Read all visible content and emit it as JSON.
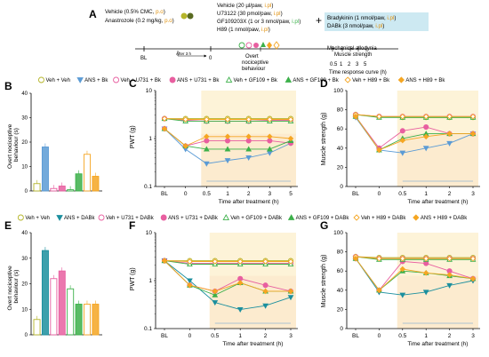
{
  "panelA": {
    "letter": "A",
    "vehicle_line1": "Vehicle (0.5% CMC, ",
    "vehicle_line1_route": "p.o",
    "vehicle_line1_end": ")",
    "anastrozole_line": "Anastrozole (0.2 mg/kg, ",
    "anastrozole_route": "p.o",
    "anastrozole_end": ")",
    "treatments": [
      {
        "name": "Vehicle (20 µl/paw, ",
        "route": "i.pl",
        "end": ")"
      },
      {
        "name": "U73122 (30 pmol/paw, ",
        "route": "i.pl",
        "end": ")"
      },
      {
        "name": "GF109203X (1 or 3 nmol/paw, ",
        "route": "i.pl",
        "end": ")"
      },
      {
        "name": "H89 (1 nmol/paw, ",
        "route": "i.pl",
        "end": ")"
      }
    ],
    "plus": "+",
    "stimuli": [
      {
        "name": "Bradykinin (1 nmol/paw, ",
        "route": "i.pl",
        "end": ")"
      },
      {
        "name": "DABk (3 nmol/paw, ",
        "route": "i.pl",
        "end": ")"
      }
    ],
    "bl": "BL",
    "after3h": "After 3 h",
    "zero": "0",
    "overt_line1": "Overt",
    "overt_line2": "nociceptive",
    "overt_line3": "behaviour",
    "mech_line1": "Mechanical allodynia",
    "mech_line2": "Muscle strength",
    "timepoints": [
      "0.5",
      "1",
      "2",
      "3",
      "5"
    ],
    "time_curve": "Time response curve (h)"
  },
  "legend1": [
    "Veh + Veh",
    "ANS + Bk",
    "Veh + U731 + Bk",
    "ANS + U731 + Bk",
    "Veh + GF109 + Bk",
    "ANS + GF109 + Bk",
    "Veh + H89 + Bk",
    "ANS + H89 + Bk"
  ],
  "legend2": [
    "Veh + Veh",
    "ANS + DABk",
    "Veh + U731 + DABk",
    "ANS + U731 + DABk",
    "Veh + GF109 + DABk",
    "ANS + GF109 + DABk",
    "Veh + H89 + DABk",
    "ANS + H89 + DABk"
  ],
  "colors": {
    "veh": "#b5b52a",
    "ans": "#5b9bd5",
    "ans2": "#1b8f9e",
    "u731": "#e85fa0",
    "gf109": "#3cb04a",
    "h89": "#f5a623",
    "shade": "#fdf3d8",
    "shade2": "#fbe3c8"
  },
  "labels": {
    "B": "B",
    "C": "C",
    "D": "D",
    "E": "E",
    "F": "F",
    "G": "G",
    "overt_y1": "Overt nociceptive",
    "overt_y2": "behaviour (s)",
    "pwt": "PWT (g)",
    "muscle": "Muscle strength (g)",
    "time_x": "Time after treatment (h)",
    "bl": "BL",
    "t0": "0"
  },
  "chart_data": [
    {
      "panel": "B",
      "type": "bar",
      "ylim": [
        0,
        40
      ],
      "yticks": [
        "0",
        "10",
        "20",
        "30",
        "40"
      ],
      "series": [
        {
          "name": "Veh + Veh",
          "values": [
            3
          ]
        },
        {
          "name": "ANS + Bk",
          "values": [
            18
          ]
        },
        {
          "name": "Veh + U731 + Bk",
          "values": [
            1
          ]
        },
        {
          "name": "ANS + U731 + Bk",
          "values": [
            2
          ]
        },
        {
          "name": "Veh + GF109 + Bk",
          "values": [
            0.5
          ]
        },
        {
          "name": "ANS + GF109 + Bk",
          "values": [
            7
          ]
        },
        {
          "name": "Veh + H89 + Bk",
          "values": [
            15
          ]
        },
        {
          "name": "ANS + H89 + Bk",
          "values": [
            6
          ]
        }
      ]
    },
    {
      "panel": "E",
      "type": "bar",
      "ylim": [
        0,
        40
      ],
      "yticks": [
        "0",
        "10",
        "20",
        "30",
        "40"
      ],
      "series": [
        {
          "name": "Veh + Veh",
          "values": [
            6
          ]
        },
        {
          "name": "ANS + DABk",
          "values": [
            33
          ]
        },
        {
          "name": "Veh + U731 + DABk",
          "values": [
            22
          ]
        },
        {
          "name": "ANS + U731 + DABk",
          "values": [
            25
          ]
        },
        {
          "name": "Veh + GF109 + DABk",
          "values": [
            18
          ]
        },
        {
          "name": "ANS + GF109 + DABk",
          "values": [
            12
          ]
        },
        {
          "name": "Veh + H89 + DABk",
          "values": [
            12
          ]
        },
        {
          "name": "ANS + H89 + DABk",
          "values": [
            12
          ]
        }
      ]
    },
    {
      "panel": "C",
      "type": "line",
      "yscale": "log",
      "ylim": [
        0.1,
        10
      ],
      "yticks": [
        "0.1",
        "1",
        "10"
      ],
      "categories": [
        "BL",
        "0",
        "0.5",
        "1",
        "2",
        "3",
        "5"
      ],
      "series": [
        {
          "name": "Veh + Veh",
          "values": [
            2.6,
            2.6,
            2.6,
            2.6,
            2.6,
            2.6,
            2.6
          ]
        },
        {
          "name": "ANS + Bk",
          "values": [
            1.6,
            0.6,
            0.3,
            0.35,
            0.4,
            0.5,
            0.8
          ]
        },
        {
          "name": "Veh + U731 + Bk",
          "values": [
            2.6,
            2.4,
            2.3,
            2.3,
            2.3,
            2.4,
            2.4
          ]
        },
        {
          "name": "ANS + U731 + Bk",
          "values": [
            1.6,
            0.7,
            0.9,
            0.9,
            0.9,
            0.9,
            0.8
          ]
        },
        {
          "name": "Veh + GF109 + Bk",
          "values": [
            2.6,
            2.3,
            2.3,
            2.3,
            2.3,
            2.3,
            2.3
          ]
        },
        {
          "name": "ANS + GF109 + Bk",
          "values": [
            1.6,
            0.7,
            0.6,
            0.6,
            0.6,
            0.6,
            0.9
          ]
        },
        {
          "name": "Veh + H89 + Bk",
          "values": [
            2.6,
            2.5,
            2.5,
            2.5,
            2.5,
            2.5,
            2.5
          ]
        },
        {
          "name": "ANS + H89 + Bk",
          "values": [
            1.6,
            0.7,
            1.1,
            1.1,
            1.1,
            1.1,
            1.0
          ]
        }
      ]
    },
    {
      "panel": "D",
      "type": "line",
      "ylim": [
        0,
        100
      ],
      "yticks": [
        "0",
        "20",
        "40",
        "60",
        "80",
        "100"
      ],
      "categories": [
        "BL",
        "0",
        "0.5",
        "1",
        "2",
        "3"
      ],
      "series": [
        {
          "name": "Veh + Veh",
          "values": [
            75,
            73,
            72,
            72,
            72,
            72
          ]
        },
        {
          "name": "ANS + Bk",
          "values": [
            72,
            38,
            35,
            40,
            45,
            55
          ]
        },
        {
          "name": "Veh + U731 + Bk",
          "values": [
            75,
            73,
            73,
            73,
            73,
            73
          ]
        },
        {
          "name": "ANS + U731 + Bk",
          "values": [
            73,
            40,
            58,
            62,
            55,
            55
          ]
        },
        {
          "name": "Veh + GF109 + Bk",
          "values": [
            75,
            72,
            72,
            72,
            72,
            72
          ]
        },
        {
          "name": "ANS + GF109 + Bk",
          "values": [
            73,
            38,
            50,
            55,
            55,
            55
          ]
        },
        {
          "name": "Veh + H89 + Bk",
          "values": [
            75,
            73,
            73,
            73,
            73,
            73
          ]
        },
        {
          "name": "ANS + H89 + Bk",
          "values": [
            73,
            38,
            48,
            52,
            55,
            55
          ]
        }
      ]
    },
    {
      "panel": "F",
      "type": "line",
      "yscale": "log",
      "ylim": [
        0.1,
        10
      ],
      "yticks": [
        "0.1",
        "1",
        "10"
      ],
      "categories": [
        "BL",
        "0",
        "0.5",
        "1",
        "2",
        "3"
      ],
      "series": [
        {
          "name": "Veh + Veh",
          "values": [
            2.6,
            2.6,
            2.6,
            2.6,
            2.6,
            2.6
          ]
        },
        {
          "name": "ANS + DABk",
          "values": [
            2.6,
            1.0,
            0.35,
            0.25,
            0.3,
            0.45
          ]
        },
        {
          "name": "Veh + U731 + DABk",
          "values": [
            2.6,
            2.3,
            2.3,
            2.3,
            2.3,
            2.3
          ]
        },
        {
          "name": "ANS + U731 + DABk",
          "values": [
            2.6,
            0.8,
            0.6,
            1.1,
            0.8,
            0.6
          ]
        },
        {
          "name": "Veh + GF109 + DABk",
          "values": [
            2.6,
            2.2,
            2.2,
            2.2,
            2.2,
            2.2
          ]
        },
        {
          "name": "ANS + GF109 + DABk",
          "values": [
            2.6,
            0.8,
            0.5,
            0.9,
            0.6,
            0.6
          ]
        },
        {
          "name": "Veh + H89 + DABk",
          "values": [
            2.6,
            2.5,
            2.5,
            2.5,
            2.5,
            2.5
          ]
        },
        {
          "name": "ANS + H89 + DABk",
          "values": [
            2.6,
            0.8,
            0.6,
            0.9,
            0.6,
            0.6
          ]
        }
      ]
    },
    {
      "panel": "G",
      "type": "line",
      "ylim": [
        0,
        100
      ],
      "yticks": [
        "0",
        "20",
        "40",
        "60",
        "80",
        "100"
      ],
      "categories": [
        "BL",
        "0",
        "0.5",
        "1",
        "2",
        "3"
      ],
      "series": [
        {
          "name": "Veh + Veh",
          "values": [
            75,
            74,
            74,
            74,
            74,
            74
          ]
        },
        {
          "name": "ANS + DABk",
          "values": [
            73,
            38,
            35,
            38,
            45,
            50
          ]
        },
        {
          "name": "Veh + U731 + DABk",
          "values": [
            75,
            73,
            73,
            73,
            73,
            73
          ]
        },
        {
          "name": "ANS + U731 + DABk",
          "values": [
            73,
            40,
            70,
            68,
            60,
            52
          ]
        },
        {
          "name": "Veh + GF109 + DABk",
          "values": [
            75,
            72,
            72,
            72,
            72,
            72
          ]
        },
        {
          "name": "ANS + GF109 + DABk",
          "values": [
            73,
            40,
            60,
            58,
            55,
            52
          ]
        },
        {
          "name": "Veh + H89 + DABk",
          "values": [
            75,
            73,
            73,
            73,
            73,
            73
          ]
        },
        {
          "name": "ANS + H89 + DABk",
          "values": [
            73,
            40,
            62,
            58,
            56,
            52
          ]
        }
      ]
    }
  ]
}
